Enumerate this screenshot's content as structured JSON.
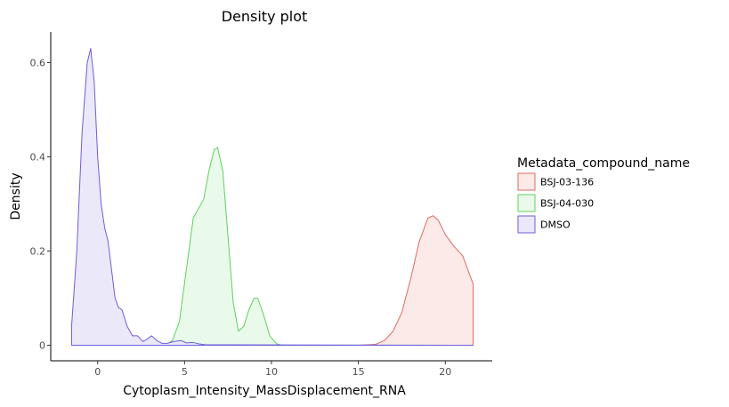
{
  "chart_data": {
    "type": "area",
    "title": "Density plot",
    "xlabel": "Cytoplasm_Intensity_MassDisplacement_RNA",
    "ylabel": "Density",
    "xlim": [
      -2.7,
      22.7
    ],
    "ylim": [
      -0.033,
      0.665
    ],
    "x_ticks": [
      0,
      5,
      10,
      15,
      20
    ],
    "x_tick_labels": [
      "0",
      "5",
      "10",
      "15",
      "20"
    ],
    "y_ticks": [
      0,
      0.2,
      0.4,
      0.6
    ],
    "y_tick_labels": [
      "0",
      "0.2",
      "0.4",
      "0.6"
    ],
    "grid": false,
    "legend": {
      "title": "Metadata_compound_name",
      "placement": "right"
    },
    "series": [
      {
        "name": "BSJ-03-136",
        "line_color": "#e06a5f",
        "fill_color": "#fbeae8",
        "x": [
          -1.5,
          15.0,
          16.0,
          16.5,
          17.0,
          17.5,
          18.0,
          18.5,
          19.0,
          19.3,
          19.6,
          20.0,
          20.5,
          21.0,
          21.3,
          21.6
        ],
        "y": [
          0,
          0,
          0.002,
          0.01,
          0.03,
          0.07,
          0.14,
          0.22,
          0.27,
          0.275,
          0.265,
          0.235,
          0.21,
          0.19,
          0.16,
          0.13
        ]
      },
      {
        "name": "BSJ-04-030",
        "line_color": "#5ed15e",
        "fill_color": "#e9faea",
        "x": [
          -1.5,
          3.9,
          4.3,
          4.7,
          5.1,
          5.5,
          5.8,
          6.1,
          6.4,
          6.7,
          6.9,
          7.2,
          7.5,
          7.8,
          8.1,
          8.4,
          8.7,
          9.0,
          9.2,
          9.5,
          9.9,
          10.3,
          10.6,
          21.6
        ],
        "y": [
          0,
          0,
          0.01,
          0.05,
          0.16,
          0.27,
          0.29,
          0.31,
          0.37,
          0.415,
          0.42,
          0.37,
          0.23,
          0.09,
          0.03,
          0.04,
          0.075,
          0.1,
          0.1,
          0.07,
          0.02,
          0.003,
          0,
          0
        ]
      },
      {
        "name": "DMSO",
        "line_color": "#6a5fd9",
        "fill_color": "#ebe9f9",
        "x": [
          -1.5,
          -1.5,
          -1.2,
          -0.9,
          -0.6,
          -0.4,
          -0.2,
          0.0,
          0.2,
          0.4,
          0.6,
          0.8,
          1.0,
          1.2,
          1.4,
          1.7,
          2.0,
          2.3,
          2.6,
          2.8,
          3.1,
          3.4,
          3.7,
          4.0,
          4.4,
          4.8,
          5.1,
          5.5,
          5.8,
          6.2,
          21.6
        ],
        "y": [
          0,
          0.04,
          0.2,
          0.45,
          0.6,
          0.63,
          0.56,
          0.4,
          0.3,
          0.25,
          0.22,
          0.16,
          0.1,
          0.08,
          0.075,
          0.04,
          0.02,
          0.02,
          0.008,
          0.012,
          0.02,
          0.01,
          0.004,
          0.004,
          0.008,
          0.01,
          0.005,
          0.006,
          0.003,
          0.001,
          0
        ]
      }
    ]
  }
}
